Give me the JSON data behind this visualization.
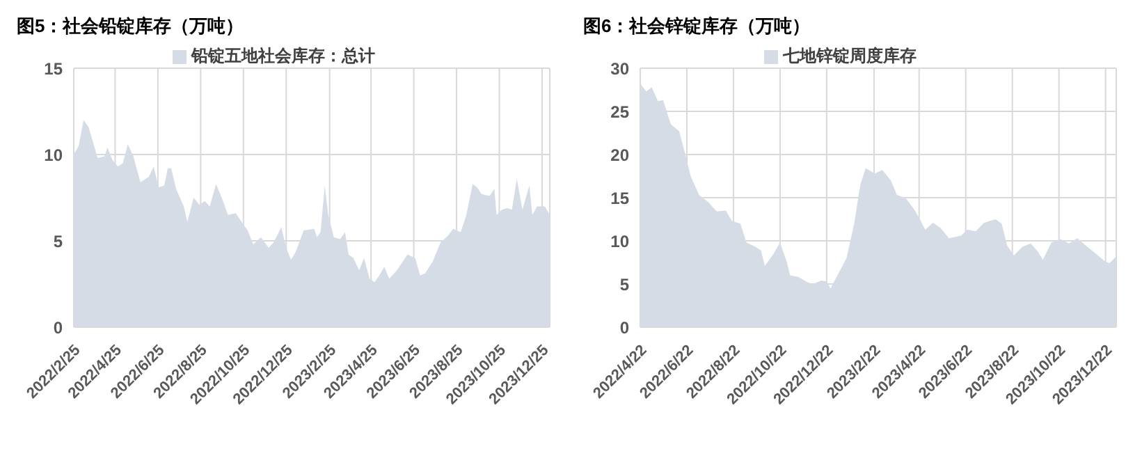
{
  "chart_data": [
    {
      "type": "area",
      "title": "图5：社会铅锭库存（万吨）",
      "x": [
        "2022-02-25",
        "2022-03-04",
        "2022-03-11",
        "2022-03-18",
        "2022-03-26",
        "2022-03-31",
        "2022-04-10",
        "2022-04-14",
        "2022-04-21",
        "2022-04-29",
        "2022-05-06",
        "2022-05-13",
        "2022-05-21",
        "2022-05-31",
        "2022-06-12",
        "2022-06-19",
        "2022-06-26",
        "2022-07-04",
        "2022-07-09",
        "2022-07-14",
        "2022-07-21",
        "2022-08-01",
        "2022-08-06",
        "2022-08-15",
        "2022-08-23",
        "2022-08-31",
        "2022-09-07",
        "2022-09-16",
        "2022-09-26",
        "2022-10-03",
        "2022-10-14",
        "2022-10-24",
        "2022-10-31",
        "2022-11-08",
        "2022-11-19",
        "2022-11-30",
        "2022-12-07",
        "2022-12-18",
        "2022-12-25",
        "2023-01-01",
        "2023-01-08",
        "2023-01-19",
        "2023-02-03",
        "2023-02-07",
        "2023-02-12",
        "2023-02-18",
        "2023-02-23",
        "2023-03-03",
        "2023-03-12",
        "2023-03-19",
        "2023-03-24",
        "2023-03-31",
        "2023-04-08",
        "2023-04-15",
        "2023-04-23",
        "2023-04-30",
        "2023-05-07",
        "2023-05-14",
        "2023-05-21",
        "2023-06-01",
        "2023-06-16",
        "2023-06-27",
        "2023-07-04",
        "2023-07-11",
        "2023-07-22",
        "2023-08-02",
        "2023-08-13",
        "2023-08-20",
        "2023-08-31",
        "2023-09-08",
        "2023-09-17",
        "2023-09-23",
        "2023-09-30",
        "2023-10-11",
        "2023-10-18",
        "2023-10-21",
        "2023-10-29",
        "2023-11-05",
        "2023-11-12",
        "2023-11-19",
        "2023-11-27",
        "2023-12-04",
        "2023-12-07",
        "2023-12-11",
        "2023-12-18",
        "2023-12-29",
        "2024-01-05"
      ],
      "series": [
        {
          "name": "铅锭五地社会库存：总计",
          "color": "#d6dce5",
          "values": [
            10.0,
            10.5,
            12.0,
            11.6,
            10.5,
            9.8,
            9.9,
            10.4,
            9.7,
            9.3,
            9.5,
            10.6,
            9.9,
            8.4,
            8.7,
            9.3,
            8.1,
            8.2,
            9.2,
            9.2,
            8.0,
            7.0,
            6.1,
            7.5,
            7.1,
            7.3,
            7.0,
            8.3,
            7.3,
            6.5,
            6.6,
            6.0,
            5.6,
            4.8,
            5.2,
            4.6,
            4.9,
            5.8,
            4.6,
            3.9,
            4.4,
            5.6,
            5.7,
            5.2,
            5.5,
            8.2,
            6.5,
            5.2,
            5.1,
            5.5,
            4.2,
            4.0,
            3.3,
            4.0,
            2.8,
            2.6,
            3.0,
            3.5,
            2.8,
            3.3,
            4.2,
            4.0,
            3.0,
            3.1,
            3.8,
            4.9,
            5.3,
            5.7,
            5.5,
            6.5,
            8.3,
            8.1,
            7.7,
            7.6,
            8.0,
            6.5,
            6.8,
            6.9,
            6.8,
            8.6,
            6.8,
            7.8,
            8.2,
            6.5,
            7.0,
            7.0,
            6.5
          ]
        }
      ],
      "xlim": [
        "2022-02-25",
        "2024-01-05"
      ],
      "xticks": [
        {
          "value": "2022-02-25",
          "label": "2022/2/25"
        },
        {
          "value": "2022-04-25",
          "label": "2022/4/25"
        },
        {
          "value": "2022-06-25",
          "label": "2022/6/25"
        },
        {
          "value": "2022-08-25",
          "label": "2022/8/25"
        },
        {
          "value": "2022-10-25",
          "label": "2022/10/25"
        },
        {
          "value": "2022-12-25",
          "label": "2022/12/25"
        },
        {
          "value": "2023-02-25",
          "label": "2023/2/25"
        },
        {
          "value": "2023-04-25",
          "label": "2023/4/25"
        },
        {
          "value": "2023-06-25",
          "label": "2023/6/25"
        },
        {
          "value": "2023-08-25",
          "label": "2023/8/25"
        },
        {
          "value": "2023-10-25",
          "label": "2023/10/25"
        },
        {
          "value": "2023-12-25",
          "label": "2023/12/25"
        }
      ],
      "ylim": [
        0,
        15
      ],
      "yticks": [
        0,
        5,
        10,
        15
      ],
      "grid": true,
      "legend": "top"
    },
    {
      "type": "area",
      "title": "图6：社会锌锭库存（万吨）",
      "x": [
        "2022-04-22",
        "2022-04-30",
        "2022-05-07",
        "2022-05-15",
        "2022-05-22",
        "2022-06-01",
        "2022-06-12",
        "2022-06-20",
        "2022-06-27",
        "2022-07-08",
        "2022-07-20",
        "2022-07-31",
        "2022-08-12",
        "2022-08-20",
        "2022-08-31",
        "2022-09-08",
        "2022-09-20",
        "2022-09-27",
        "2022-10-02",
        "2022-10-12",
        "2022-10-22",
        "2022-10-31",
        "2022-11-04",
        "2022-11-15",
        "2022-11-27",
        "2022-12-04",
        "2022-12-15",
        "2022-12-22",
        "2022-12-27",
        "2023-01-08",
        "2023-01-17",
        "2023-01-27",
        "2023-02-04",
        "2023-02-11",
        "2023-02-23",
        "2023-03-05",
        "2023-03-16",
        "2023-03-24",
        "2023-04-04",
        "2023-04-15",
        "2023-04-23",
        "2023-04-30",
        "2023-05-10",
        "2023-05-20",
        "2023-05-31",
        "2023-06-16",
        "2023-06-24",
        "2023-07-05",
        "2023-07-16",
        "2023-07-31",
        "2023-08-08",
        "2023-08-15",
        "2023-08-24",
        "2023-09-04",
        "2023-09-15",
        "2023-09-24",
        "2023-10-01",
        "2023-10-12",
        "2023-10-24",
        "2023-11-04",
        "2023-11-15",
        "2023-11-27",
        "2023-12-08",
        "2023-12-20",
        "2023-12-27",
        "2024-01-05"
      ],
      "series": [
        {
          "name": "七地锌锭周度库存",
          "color": "#d6dce5",
          "values": [
            28.2,
            27.3,
            27.8,
            26.2,
            26.3,
            23.5,
            22.7,
            20.0,
            17.5,
            15.3,
            14.5,
            13.4,
            13.5,
            12.3,
            12.0,
            9.8,
            9.3,
            8.9,
            7.1,
            8.3,
            9.8,
            7.5,
            6.0,
            5.8,
            5.2,
            5.0,
            5.4,
            5.3,
            4.5,
            6.5,
            8.0,
            12.0,
            16.5,
            18.4,
            17.8,
            18.2,
            17.0,
            15.3,
            15.0,
            13.7,
            12.5,
            11.3,
            12.1,
            11.5,
            10.3,
            10.6,
            11.3,
            11.1,
            12.1,
            12.5,
            12.0,
            9.5,
            8.3,
            9.3,
            9.7,
            8.8,
            7.8,
            9.8,
            10.2,
            9.7,
            10.3,
            9.4,
            8.6,
            7.7,
            7.4,
            8.2
          ]
        }
      ],
      "xlim": [
        "2022-04-22",
        "2024-01-05"
      ],
      "xticks": [
        {
          "value": "2022-04-22",
          "label": "2022/4/22"
        },
        {
          "value": "2022-06-22",
          "label": "2022/6/22"
        },
        {
          "value": "2022-08-22",
          "label": "2022/8/22"
        },
        {
          "value": "2022-10-22",
          "label": "2022/10/22"
        },
        {
          "value": "2022-12-22",
          "label": "2022/12/22"
        },
        {
          "value": "2023-02-22",
          "label": "2023/2/22"
        },
        {
          "value": "2023-04-22",
          "label": "2023/4/22"
        },
        {
          "value": "2023-06-22",
          "label": "2023/6/22"
        },
        {
          "value": "2023-08-22",
          "label": "2023/8/22"
        },
        {
          "value": "2023-10-22",
          "label": "2023/10/22"
        },
        {
          "value": "2023-12-22",
          "label": "2023/12/22"
        }
      ],
      "ylim": [
        0,
        30
      ],
      "yticks": [
        0,
        5,
        10,
        15,
        20,
        25,
        30
      ],
      "grid": true,
      "legend": "top"
    }
  ]
}
